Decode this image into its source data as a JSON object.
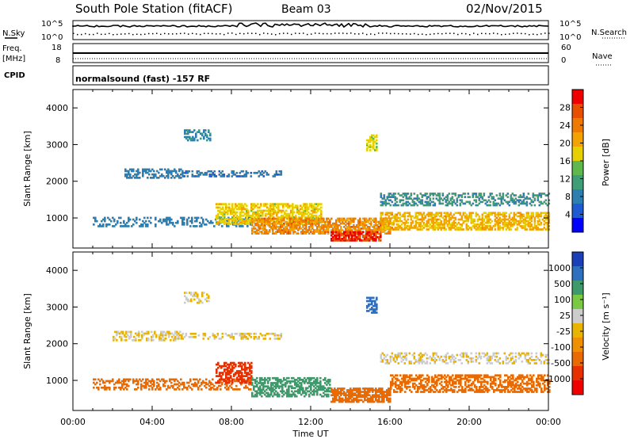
{
  "header": {
    "station": "South Pole Station (fitACF)",
    "beam": "Beam 03",
    "date": "02/Nov/2015"
  },
  "strip_panels": {
    "nsky_label": "N.Sky",
    "nsearch_label": "N.Search",
    "freq_label": "Freq.",
    "freq_unit": "[MHz]",
    "nave_label": "Nave",
    "cpid_label": "CPID",
    "nsky_ticks": [
      "10^5",
      "10^0"
    ],
    "nsearch_ticks": [
      "10^5",
      "10^0"
    ],
    "freq_ticks": [
      "18",
      "8"
    ],
    "nave_ticks": [
      "60",
      "0"
    ],
    "cpid_text": "normalsound (fast) -157 RF"
  },
  "colors": {
    "power": [
      "#0000ff",
      "#1e5ad2",
      "#2c7fb0",
      "#3f9e78",
      "#5fb84e",
      "#e6d000",
      "#f2a300",
      "#ef7a00",
      "#e65000",
      "#ee0000"
    ],
    "velocity": [
      "#1a3fb8",
      "#2e6fc0",
      "#3e9a6a",
      "#7ac943",
      "#cccccc",
      "#e8b400",
      "#f09000",
      "#e96a00",
      "#e63000",
      "#ee0000"
    ]
  },
  "chart_data": [
    {
      "type": "heatmap",
      "name": "power",
      "ylabel": "Slant Range [km]",
      "xlabel": "",
      "colorbar_label": "Power [dB]",
      "colorbar_ticks": [
        "4",
        "8",
        "12",
        "16",
        "20",
        "24",
        "28"
      ],
      "colorbar_range": [
        0,
        32
      ],
      "y_ticks": [
        "1000",
        "2000",
        "3000",
        "4000"
      ],
      "ylim": [
        180,
        4500
      ],
      "xlim": [
        0,
        24
      ],
      "bands": [
        {
          "x0": 1.0,
          "x1": 9.0,
          "y": 880,
          "w": 120,
          "v": 8,
          "d": 0.35
        },
        {
          "x0": 2.6,
          "x1": 5.5,
          "y": 2200,
          "w": 120,
          "v": 8,
          "d": 0.5
        },
        {
          "x0": 5.5,
          "x1": 10.5,
          "y": 2200,
          "w": 80,
          "v": 7,
          "d": 0.4
        },
        {
          "x0": 5.6,
          "x1": 6.9,
          "y": 3250,
          "w": 150,
          "v": 9,
          "d": 0.35
        },
        {
          "x0": 7.2,
          "x1": 12.5,
          "y": 1100,
          "w": 280,
          "v": 18,
          "d": 0.6
        },
        {
          "x0": 9.0,
          "x1": 16.0,
          "y": 780,
          "w": 220,
          "v": 23,
          "d": 0.7
        },
        {
          "x0": 13.0,
          "x1": 15.5,
          "y": 500,
          "w": 130,
          "v": 29,
          "d": 0.85
        },
        {
          "x0": 15.5,
          "x1": 24.0,
          "y": 900,
          "w": 230,
          "v": 20,
          "d": 0.6
        },
        {
          "x0": 15.5,
          "x1": 24.0,
          "y": 1500,
          "w": 170,
          "v": 10,
          "d": 0.45
        },
        {
          "x0": 14.8,
          "x1": 15.3,
          "y": 3050,
          "w": 220,
          "v": 17,
          "d": 0.5
        }
      ]
    },
    {
      "type": "heatmap",
      "name": "velocity",
      "ylabel": "Slant Range [km]",
      "xlabel": "Time UT",
      "colorbar_label": "Velocity [m s⁻¹]",
      "colorbar_ticks": [
        "-1000",
        "-500",
        "-100",
        "-25",
        "25",
        "100",
        "500",
        "1000"
      ],
      "colorbar_range": [
        -1000,
        1000
      ],
      "x_ticks": [
        "00:00",
        "04:00",
        "08:00",
        "12:00",
        "16:00",
        "20:00",
        "00:00"
      ],
      "y_ticks": [
        "1000",
        "2000",
        "3000",
        "4000"
      ],
      "ylim": [
        180,
        4500
      ],
      "xlim": [
        0,
        24
      ],
      "bands": [
        {
          "x0": 1.0,
          "x1": 9.0,
          "y": 880,
          "w": 140,
          "v": -150,
          "d": 0.4
        },
        {
          "x0": 2.0,
          "x1": 5.5,
          "y": 2200,
          "w": 120,
          "v": 0,
          "d": 0.5
        },
        {
          "x0": 5.5,
          "x1": 10.5,
          "y": 2200,
          "w": 80,
          "v": 0,
          "d": 0.4
        },
        {
          "x0": 5.6,
          "x1": 6.9,
          "y": 3250,
          "w": 150,
          "v": 0,
          "d": 0.35
        },
        {
          "x0": 7.2,
          "x1": 9.0,
          "y": 1200,
          "w": 280,
          "v": -600,
          "d": 0.55
        },
        {
          "x0": 9.0,
          "x1": 13.0,
          "y": 800,
          "w": 250,
          "v": 150,
          "d": 0.55
        },
        {
          "x0": 13.0,
          "x1": 16.0,
          "y": 600,
          "w": 200,
          "v": -120,
          "d": 0.75
        },
        {
          "x0": 16.0,
          "x1": 24.0,
          "y": 900,
          "w": 230,
          "v": -130,
          "d": 0.55
        },
        {
          "x0": 15.5,
          "x1": 24.0,
          "y": 1600,
          "w": 150,
          "v": 0,
          "d": 0.35
        },
        {
          "x0": 14.8,
          "x1": 15.3,
          "y": 3050,
          "w": 220,
          "v": 700,
          "d": 0.5
        }
      ]
    }
  ]
}
